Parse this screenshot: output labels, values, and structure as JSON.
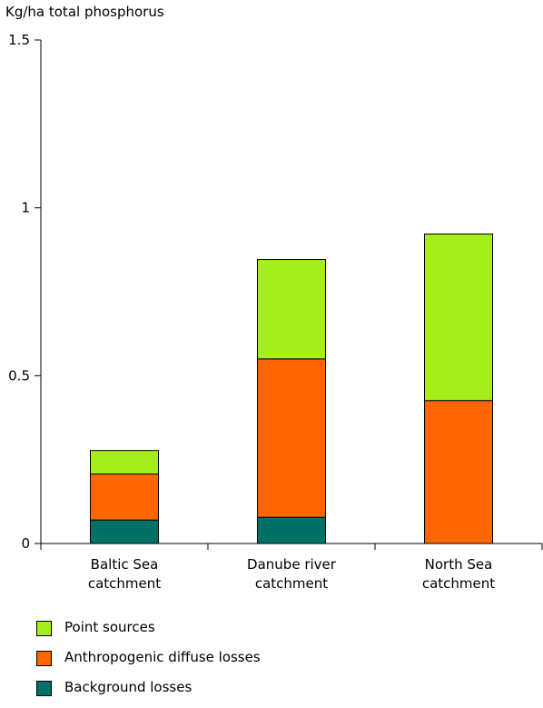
{
  "chart_data": {
    "type": "bar",
    "stacked": true,
    "ylabel": "Kg/ha total phosphorus",
    "ylim": [
      0,
      1.5
    ],
    "yticks": [
      {
        "value": 0,
        "label": "0"
      },
      {
        "value": 0.5,
        "label": "0.5"
      },
      {
        "value": 1,
        "label": "1"
      },
      {
        "value": 1.5,
        "label": "1.5"
      }
    ],
    "categories": [
      [
        "Baltic Sea",
        "catchment"
      ],
      [
        "Danube river",
        "catchment"
      ],
      [
        "North Sea",
        "catchment"
      ]
    ],
    "series": [
      {
        "name": "Background losses",
        "color": "#007167",
        "values": [
          0.07,
          0.078,
          0
        ]
      },
      {
        "name": "Anthropogenic diffuse losses",
        "color": "#ff6600",
        "values": [
          0.137,
          0.472,
          0.426
        ]
      },
      {
        "name": "Point sources",
        "color": "#a6ee1b",
        "values": [
          0.07,
          0.296,
          0.496
        ]
      }
    ],
    "legend_order": [
      2,
      1,
      0
    ],
    "grid": false,
    "legend_position": "bottom-left"
  }
}
